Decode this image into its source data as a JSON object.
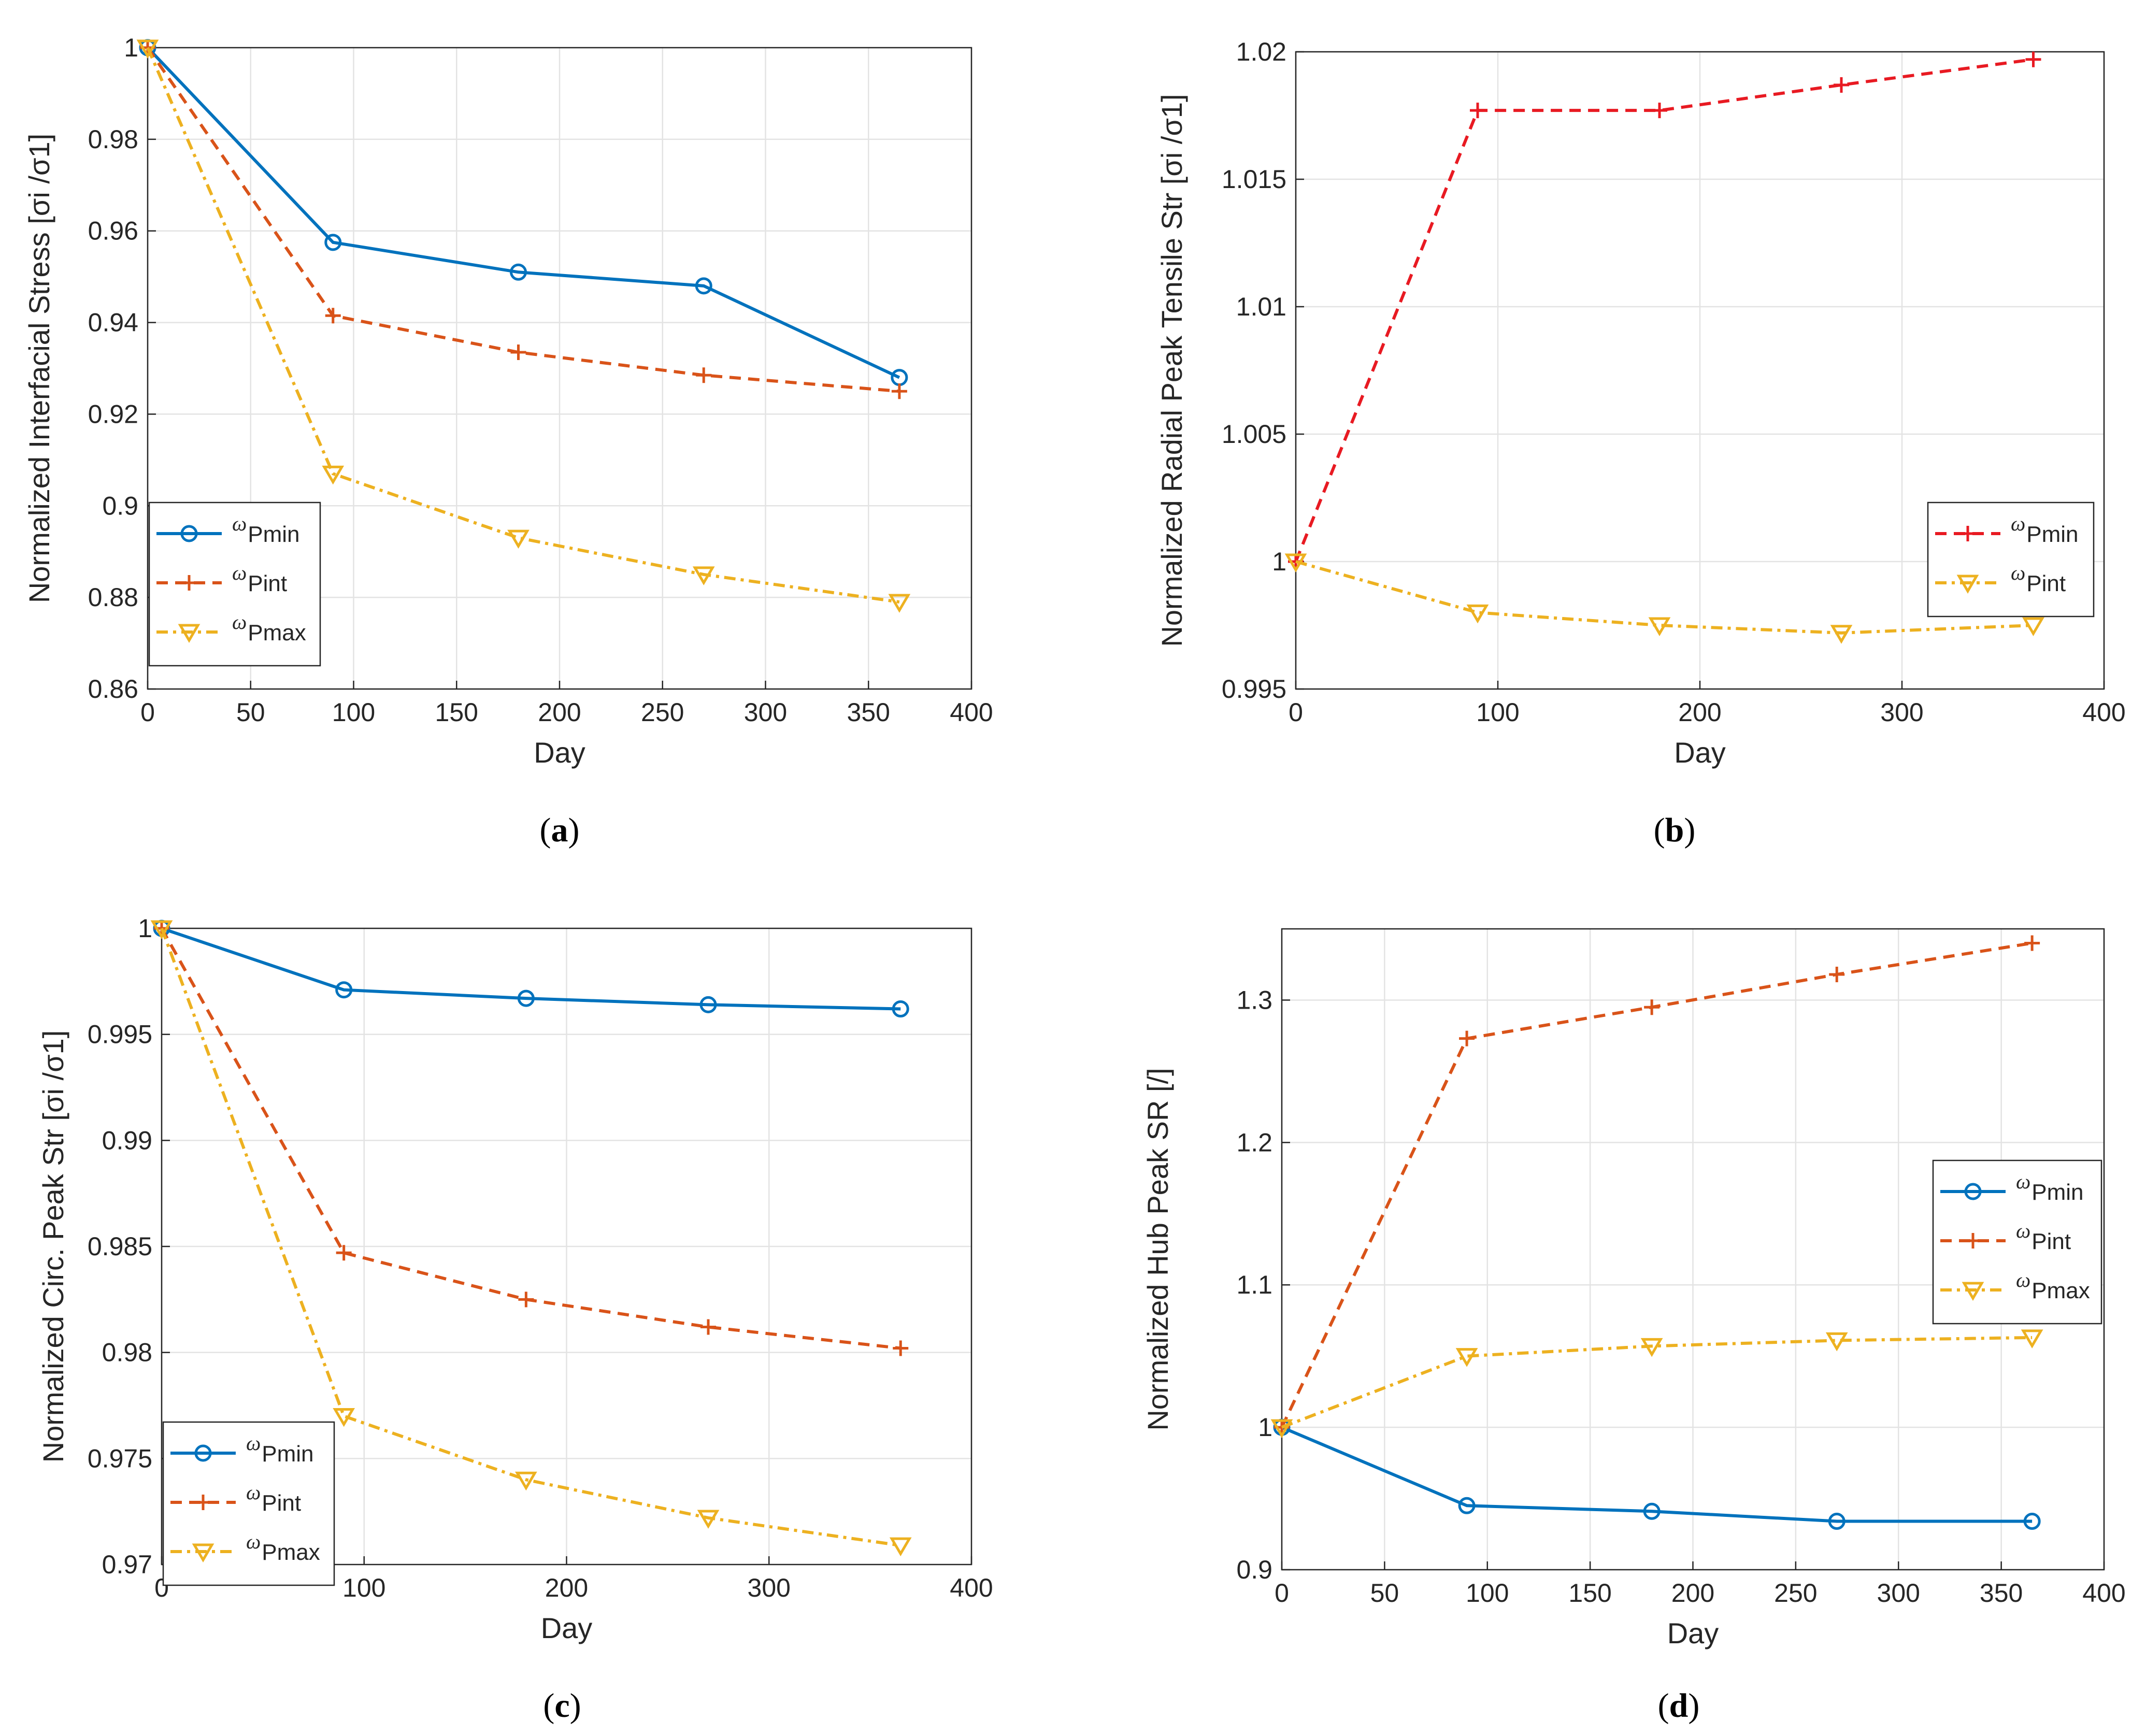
{
  "chart_data": [
    {
      "id": "a",
      "type": "line",
      "caption": "a",
      "xlabel": "Day",
      "ylabel": "Normalized Interfacial Stress [σi /σ1]",
      "xlim": [
        0,
        400
      ],
      "ylim": [
        0.86,
        1.0
      ],
      "xticks": [
        0,
        50,
        100,
        150,
        200,
        250,
        300,
        350,
        400
      ],
      "yticks": [
        0.86,
        0.88,
        0.9,
        0.92,
        0.94,
        0.96,
        0.98,
        1
      ],
      "ytick_labels": [
        "0.86",
        "0.88",
        "0.9",
        "0.92",
        "0.94",
        "0.96",
        "0.98",
        "1"
      ],
      "grid": true,
      "legend_position": "bottom-left",
      "x": [
        0,
        90,
        180,
        270,
        365
      ],
      "series": [
        {
          "name": "ωPmin",
          "base": "ω",
          "sub": "Pmin",
          "style": "min",
          "values": [
            1.0,
            0.9575,
            0.951,
            0.948,
            0.928
          ]
        },
        {
          "name": "ωPint",
          "base": "ω",
          "sub": "Pint",
          "style": "int",
          "values": [
            1.0,
            0.9415,
            0.9335,
            0.9285,
            0.925
          ]
        },
        {
          "name": "ωPmax",
          "base": "ω",
          "sub": "Pmax",
          "style": "max",
          "values": [
            1.0,
            0.907,
            0.893,
            0.885,
            0.879
          ]
        }
      ]
    },
    {
      "id": "b",
      "type": "line",
      "caption": "b",
      "xlabel": "Day",
      "ylabel": "Normalized Radial Peak Tensile Str [σi /σ1]",
      "xlim": [
        0,
        400
      ],
      "ylim": [
        0.995,
        1.02
      ],
      "xticks": [
        0,
        100,
        200,
        300,
        400
      ],
      "yticks": [
        0.995,
        1.0,
        1.005,
        1.01,
        1.015,
        1.02
      ],
      "ytick_labels": [
        "0.995",
        "1",
        "1.005",
        "1.01",
        "1.015",
        "1.02"
      ],
      "grid": true,
      "legend_position": "right",
      "x": [
        0,
        90,
        180,
        270,
        365
      ],
      "series": [
        {
          "name": "ωPmin",
          "base": "ω",
          "sub": "Pmin",
          "style": "redint",
          "values": [
            1.0,
            1.0177,
            1.0177,
            1.0187,
            1.0197
          ]
        },
        {
          "name": "ωPint",
          "base": "ω",
          "sub": "Pint",
          "style": "max",
          "values": [
            1.0,
            0.998,
            0.9975,
            0.9972,
            0.9975
          ]
        }
      ]
    },
    {
      "id": "c",
      "type": "line",
      "caption": "c",
      "xlabel": "Day",
      "ylabel": "Normalized Circ. Peak Str [σi /σ1]",
      "xlim": [
        0,
        400
      ],
      "ylim": [
        0.97,
        1.0
      ],
      "xticks": [
        0,
        100,
        200,
        300,
        400
      ],
      "yticks": [
        0.97,
        0.975,
        0.98,
        0.985,
        0.99,
        0.995,
        1.0
      ],
      "ytick_labels": [
        "0.97",
        "0.975",
        "0.98",
        "0.985",
        "0.99",
        "0.995",
        "1"
      ],
      "grid": true,
      "legend_position": "bottom-left",
      "x": [
        0,
        90,
        180,
        270,
        365
      ],
      "series": [
        {
          "name": "ωPmin",
          "base": "ω",
          "sub": "Pmin",
          "style": "min",
          "values": [
            1.0,
            0.9971,
            0.9967,
            0.9964,
            0.9962
          ]
        },
        {
          "name": "ωPint",
          "base": "ω",
          "sub": "Pint",
          "style": "int",
          "values": [
            1.0,
            0.9847,
            0.9825,
            0.9812,
            0.9802
          ]
        },
        {
          "name": "ωPmax",
          "base": "ω",
          "sub": "Pmax",
          "style": "max",
          "values": [
            1.0,
            0.977,
            0.974,
            0.9722,
            0.9709
          ]
        }
      ]
    },
    {
      "id": "d",
      "type": "line",
      "caption": "d",
      "xlabel": "Day",
      "ylabel": "Normalized Hub Peak SR [/]",
      "xlim": [
        0,
        400
      ],
      "ylim": [
        0.9,
        1.35
      ],
      "xticks": [
        0,
        50,
        100,
        150,
        200,
        250,
        300,
        350,
        400
      ],
      "yticks": [
        0.9,
        1.0,
        1.1,
        1.2,
        1.3
      ],
      "ytick_labels": [
        "0.9",
        "1",
        "1.1",
        "1.2",
        "1.3"
      ],
      "grid": true,
      "legend_position": "right",
      "x": [
        0,
        90,
        180,
        270,
        365
      ],
      "series": [
        {
          "name": "ωPmin",
          "base": "ω",
          "sub": "Pmin",
          "style": "min",
          "values": [
            1.0,
            0.945,
            0.941,
            0.934,
            0.934
          ]
        },
        {
          "name": "ωPint",
          "base": "ω",
          "sub": "Pint",
          "style": "int",
          "values": [
            1.0,
            1.273,
            1.295,
            1.318,
            1.34
          ]
        },
        {
          "name": "ωPmax",
          "base": "ω",
          "sub": "Pmax",
          "style": "max",
          "values": [
            1.0,
            1.05,
            1.057,
            1.061,
            1.063
          ]
        }
      ]
    }
  ]
}
